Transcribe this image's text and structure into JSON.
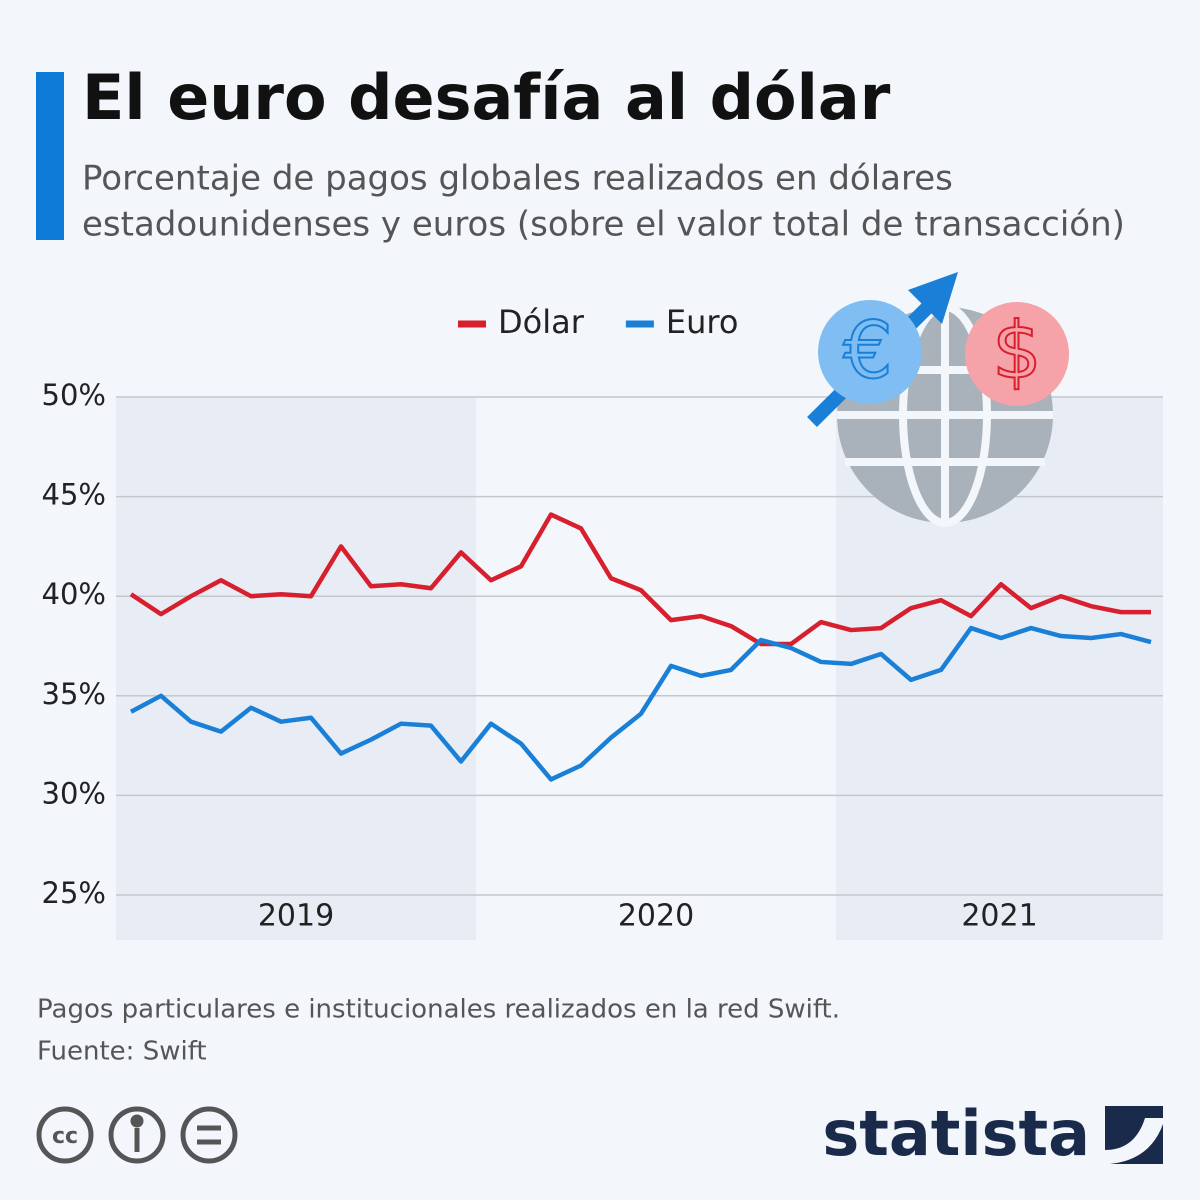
{
  "chart_data": {
    "type": "line",
    "title": "El euro desafía al dólar",
    "subtitle": [
      "Porcentaje de pagos globales realizados en dólares",
      "estadounidenses y euros (sobre el valor total de transacción)"
    ],
    "categories": [
      null,
      null,
      null,
      null,
      null,
      null,
      null,
      null,
      null,
      null,
      null,
      null,
      null,
      null,
      null,
      null,
      null,
      null,
      null,
      null,
      null,
      null,
      null,
      null,
      null,
      null,
      null,
      null,
      null,
      null,
      null,
      null,
      null,
      null,
      null
    ],
    "year_labels": [
      "2019",
      "2020",
      "2021"
    ],
    "series": [
      {
        "name": "Dólar",
        "color": "#d71f2e",
        "values": [
          40.1,
          39.1,
          40.0,
          40.8,
          40.0,
          40.1,
          40.0,
          42.5,
          40.5,
          40.6,
          40.4,
          42.2,
          40.8,
          41.5,
          44.1,
          43.4,
          40.9,
          40.3,
          38.8,
          39.0,
          38.5,
          37.6,
          37.6,
          38.7,
          38.3,
          38.4,
          39.4,
          39.8,
          39.0,
          40.6,
          39.4,
          40.0,
          39.5,
          39.2,
          39.2
        ]
      },
      {
        "name": "Euro",
        "color": "#1a7fd6",
        "values": [
          34.2,
          35.0,
          33.7,
          33.2,
          34.4,
          33.7,
          33.9,
          32.1,
          32.8,
          33.6,
          33.5,
          31.7,
          33.6,
          32.6,
          30.8,
          31.5,
          32.9,
          34.1,
          36.5,
          36.0,
          36.3,
          37.8,
          37.4,
          36.7,
          36.6,
          37.1,
          35.8,
          36.3,
          38.4,
          37.9,
          38.4,
          38.0,
          37.9,
          38.1,
          37.7
        ]
      }
    ],
    "ylim": [
      25,
      50
    ],
    "yticks": [
      {
        "value": 25,
        "label": "25%"
      },
      {
        "value": 30,
        "label": "30%"
      },
      {
        "value": 35,
        "label": "35%"
      },
      {
        "value": 40,
        "label": "40%"
      },
      {
        "value": 45,
        "label": "45%"
      },
      {
        "value": 50,
        "label": "50%"
      }
    ],
    "grid": true,
    "note": "Pagos particulares e institucionales realizados en la red Swift.",
    "source": "Fuente: Swift",
    "brand": "statista"
  }
}
